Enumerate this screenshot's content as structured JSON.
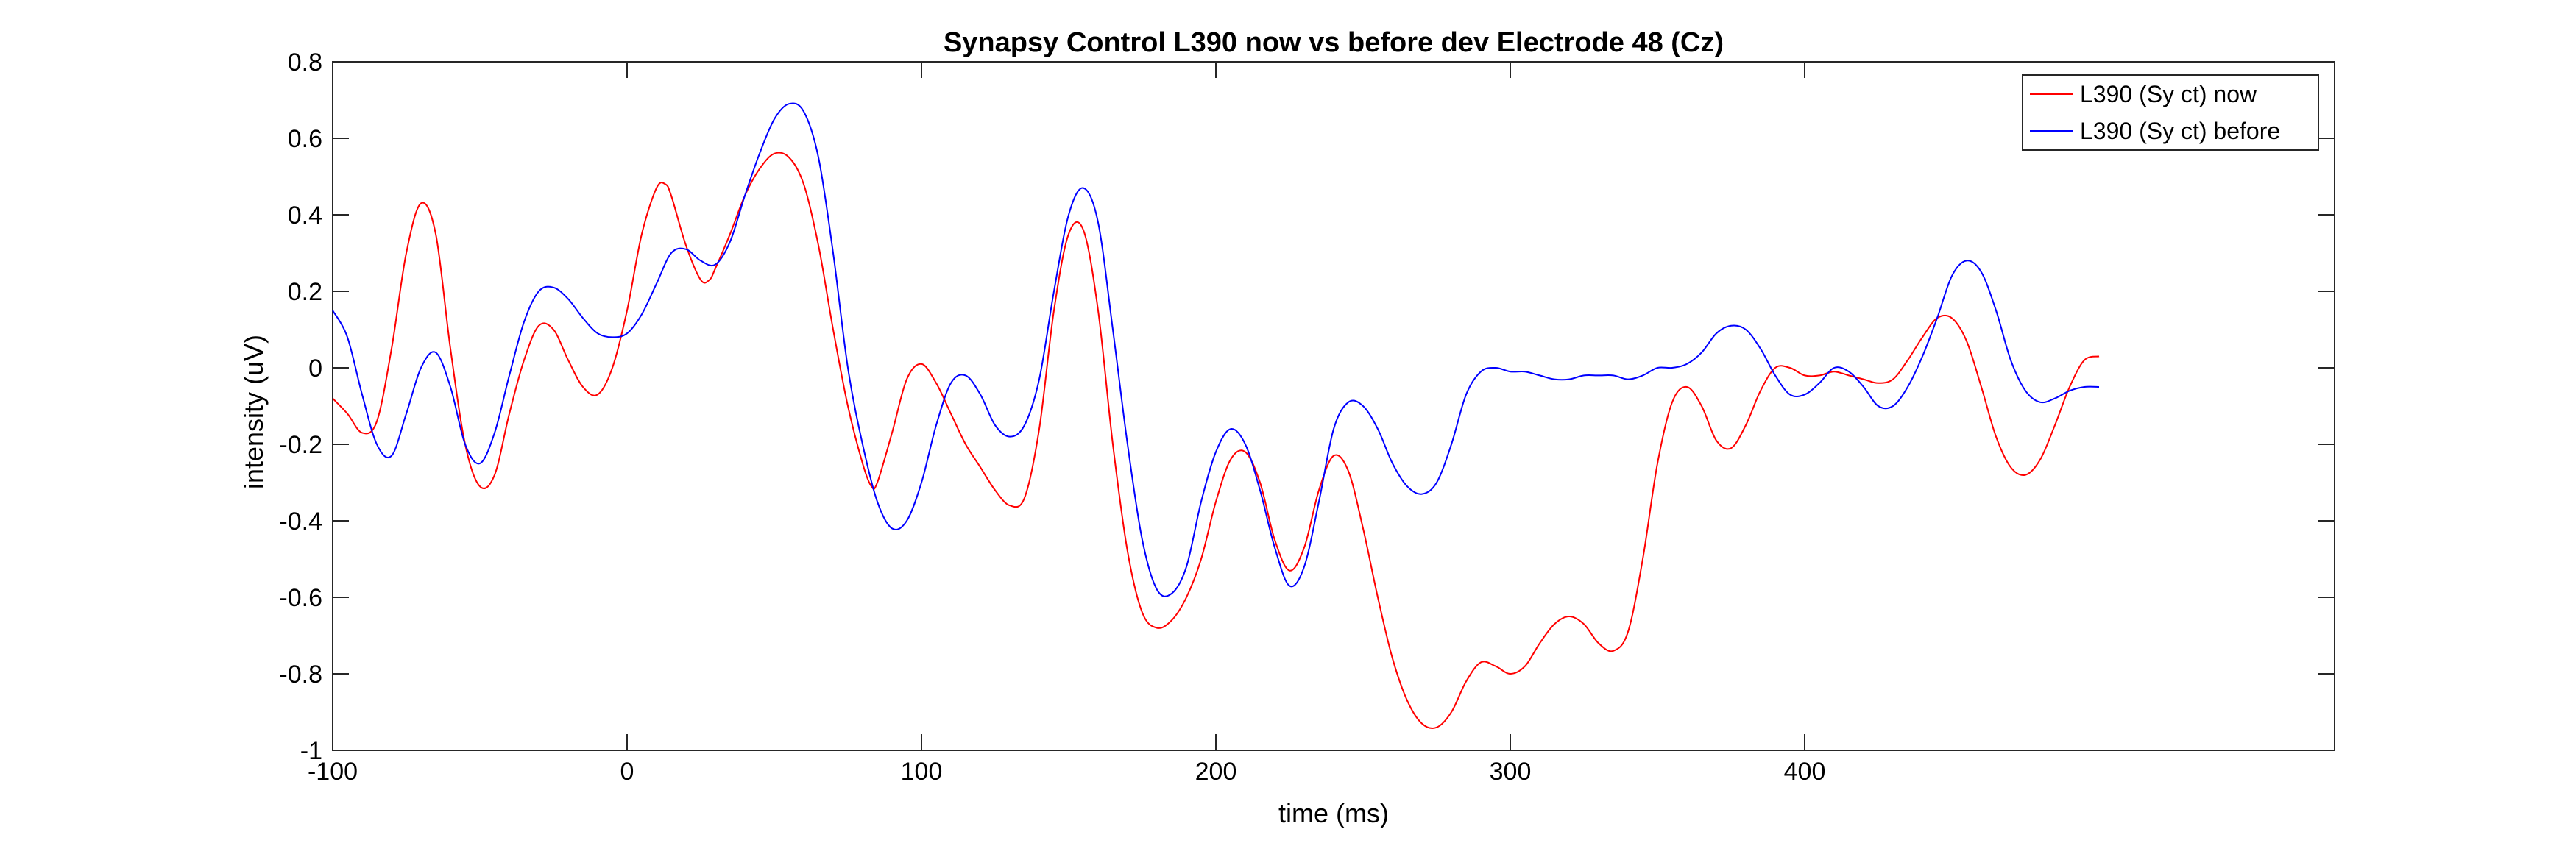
{
  "chart_data": {
    "type": "line",
    "title": "Synapsy Control L390 now vs before dev Electrode 48 (Cz)",
    "xlabel": "time (ms)",
    "ylabel": "intensity (uV)",
    "xlim": [
      -100,
      580
    ],
    "ylim": [
      -1,
      0.8
    ],
    "xticks": [
      -100,
      0,
      100,
      200,
      300,
      400
    ],
    "yticks": [
      -1,
      -0.8,
      -0.6,
      -0.4,
      -0.2,
      0,
      0.2,
      0.4,
      0.6,
      0.8
    ],
    "xtick_labels": [
      "-100",
      "0",
      "100",
      "200",
      "300",
      "400"
    ],
    "ytick_labels": [
      "-1",
      "-0.8",
      "-0.6",
      "-0.4",
      "-0.2",
      "0",
      "0.2",
      "0.4",
      "0.6",
      "0.8"
    ],
    "grid": false,
    "legend_position": "top-right",
    "series": [
      {
        "name": "L390 (Sy ct) now",
        "color": "#ff0000",
        "x": [
          -100,
          -95,
          -90,
          -85,
          -80,
          -75,
          -70,
          -65,
          -60,
          -55,
          -50,
          -45,
          -40,
          -35,
          -30,
          -25,
          -20,
          -15,
          -10,
          -5,
          0,
          5,
          10,
          13,
          15,
          20,
          25,
          28,
          30,
          35,
          40,
          45,
          50,
          55,
          60,
          65,
          70,
          75,
          80,
          83,
          85,
          90,
          95,
          100,
          105,
          110,
          115,
          120,
          125,
          130,
          135,
          140,
          145,
          150,
          155,
          160,
          165,
          170,
          175,
          180,
          185,
          190,
          195,
          200,
          205,
          210,
          215,
          220,
          225,
          230,
          235,
          240,
          245,
          250,
          255,
          260,
          265,
          270,
          275,
          280,
          285,
          290,
          295,
          300,
          305,
          310,
          315,
          320,
          325,
          330,
          335,
          340,
          345,
          350,
          355,
          360,
          365,
          370,
          375,
          380,
          385,
          390,
          395,
          400,
          405,
          410,
          415,
          420,
          425,
          430,
          435,
          440,
          445,
          450,
          455,
          460,
          465,
          470,
          475,
          480,
          485,
          490,
          495,
          500
        ],
        "y": [
          -0.08,
          -0.12,
          -0.17,
          -0.14,
          0.05,
          0.3,
          0.43,
          0.35,
          0.05,
          -0.2,
          -0.31,
          -0.28,
          -0.12,
          0.02,
          0.11,
          0.1,
          0.02,
          -0.05,
          -0.07,
          0.0,
          0.15,
          0.35,
          0.47,
          0.48,
          0.45,
          0.32,
          0.23,
          0.23,
          0.26,
          0.35,
          0.45,
          0.52,
          0.56,
          0.55,
          0.48,
          0.32,
          0.1,
          -0.1,
          -0.25,
          -0.31,
          -0.3,
          -0.17,
          -0.03,
          0.01,
          -0.04,
          -0.12,
          -0.2,
          -0.26,
          -0.32,
          -0.36,
          -0.34,
          -0.16,
          0.15,
          0.35,
          0.36,
          0.15,
          -0.2,
          -0.48,
          -0.64,
          -0.68,
          -0.66,
          -0.6,
          -0.5,
          -0.35,
          -0.24,
          -0.22,
          -0.3,
          -0.45,
          -0.53,
          -0.47,
          -0.32,
          -0.23,
          -0.27,
          -0.42,
          -0.6,
          -0.76,
          -0.87,
          -0.93,
          -0.94,
          -0.9,
          -0.82,
          -0.77,
          -0.78,
          -0.8,
          -0.78,
          -0.72,
          -0.67,
          -0.65,
          -0.67,
          -0.72,
          -0.74,
          -0.69,
          -0.5,
          -0.25,
          -0.09,
          -0.05,
          -0.1,
          -0.19,
          -0.21,
          -0.15,
          -0.06,
          0.0,
          0.0,
          -0.02,
          -0.02,
          -0.01,
          -0.02,
          -0.03,
          -0.04,
          -0.03,
          0.02,
          0.08,
          0.13,
          0.13,
          0.07,
          -0.05,
          -0.18,
          -0.26,
          -0.28,
          -0.24,
          -0.15,
          -0.05,
          0.02,
          0.03
        ]
      },
      {
        "name": "L390 (Sy ct) before",
        "color": "#0000ff",
        "x": [
          -100,
          -95,
          -90,
          -85,
          -80,
          -75,
          -70,
          -65,
          -60,
          -55,
          -50,
          -45,
          -40,
          -35,
          -30,
          -25,
          -20,
          -15,
          -10,
          -5,
          0,
          5,
          10,
          15,
          20,
          25,
          30,
          35,
          40,
          45,
          50,
          55,
          60,
          65,
          70,
          75,
          80,
          85,
          90,
          95,
          100,
          105,
          110,
          115,
          120,
          125,
          130,
          135,
          140,
          145,
          150,
          155,
          160,
          165,
          170,
          175,
          180,
          185,
          190,
          195,
          200,
          205,
          210,
          215,
          220,
          225,
          230,
          235,
          240,
          245,
          250,
          255,
          260,
          265,
          270,
          275,
          280,
          285,
          290,
          295,
          300,
          305,
          310,
          315,
          320,
          325,
          330,
          335,
          340,
          345,
          350,
          355,
          360,
          365,
          370,
          375,
          380,
          385,
          390,
          395,
          400,
          405,
          410,
          415,
          420,
          425,
          430,
          435,
          440,
          445,
          450,
          455,
          460,
          465,
          470,
          475,
          480,
          485,
          490,
          495,
          500
        ],
        "y": [
          0.15,
          0.08,
          -0.07,
          -0.2,
          -0.23,
          -0.12,
          0.0,
          0.04,
          -0.05,
          -0.2,
          -0.25,
          -0.17,
          -0.02,
          0.12,
          0.2,
          0.21,
          0.18,
          0.13,
          0.09,
          0.08,
          0.09,
          0.14,
          0.22,
          0.3,
          0.31,
          0.28,
          0.27,
          0.33,
          0.45,
          0.56,
          0.65,
          0.69,
          0.67,
          0.55,
          0.3,
          0.0,
          -0.2,
          -0.35,
          -0.42,
          -0.4,
          -0.3,
          -0.15,
          -0.04,
          -0.02,
          -0.07,
          -0.15,
          -0.18,
          -0.15,
          -0.03,
          0.2,
          0.4,
          0.47,
          0.38,
          0.1,
          -0.2,
          -0.45,
          -0.58,
          -0.59,
          -0.52,
          -0.35,
          -0.22,
          -0.16,
          -0.2,
          -0.32,
          -0.47,
          -0.57,
          -0.52,
          -0.35,
          -0.16,
          -0.09,
          -0.1,
          -0.16,
          -0.25,
          -0.31,
          -0.33,
          -0.3,
          -0.2,
          -0.07,
          -0.01,
          0.0,
          -0.01,
          -0.01,
          -0.02,
          -0.03,
          -0.03,
          -0.02,
          -0.02,
          -0.02,
          -0.03,
          -0.02,
          0.0,
          0.0,
          0.01,
          0.04,
          0.09,
          0.11,
          0.1,
          0.05,
          -0.02,
          -0.07,
          -0.07,
          -0.04,
          0.0,
          -0.01,
          -0.05,
          -0.1,
          -0.1,
          -0.05,
          0.03,
          0.13,
          0.24,
          0.28,
          0.25,
          0.15,
          0.02,
          -0.06,
          -0.09,
          -0.08,
          -0.06,
          -0.05,
          -0.05
        ]
      }
    ]
  }
}
